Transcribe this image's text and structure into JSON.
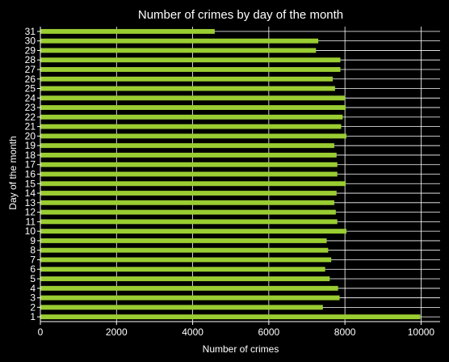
{
  "chart_data": {
    "type": "bar",
    "orientation": "horizontal",
    "title": "Number of crimes by day of the month",
    "xlabel": "Number of crimes",
    "ylabel": "Day of the month",
    "xlim": [
      0,
      10500
    ],
    "xticks": [
      0,
      2000,
      4000,
      6000,
      8000,
      10000
    ],
    "grid": true,
    "bar_color": "#9ACD32",
    "background": "#000000",
    "categories": [
      "1",
      "2",
      "3",
      "4",
      "5",
      "6",
      "7",
      "8",
      "9",
      "10",
      "11",
      "12",
      "13",
      "14",
      "15",
      "16",
      "17",
      "18",
      "19",
      "20",
      "21",
      "22",
      "23",
      "24",
      "25",
      "26",
      "27",
      "28",
      "29",
      "30",
      "31"
    ],
    "values": [
      9980,
      7420,
      7860,
      7820,
      7600,
      7480,
      7640,
      7560,
      7520,
      8040,
      7800,
      7760,
      7720,
      7780,
      8020,
      7800,
      7800,
      7780,
      7720,
      8040,
      7900,
      7940,
      8020,
      8000,
      7740,
      7680,
      7880,
      7880,
      7240,
      7300,
      4580
    ]
  }
}
